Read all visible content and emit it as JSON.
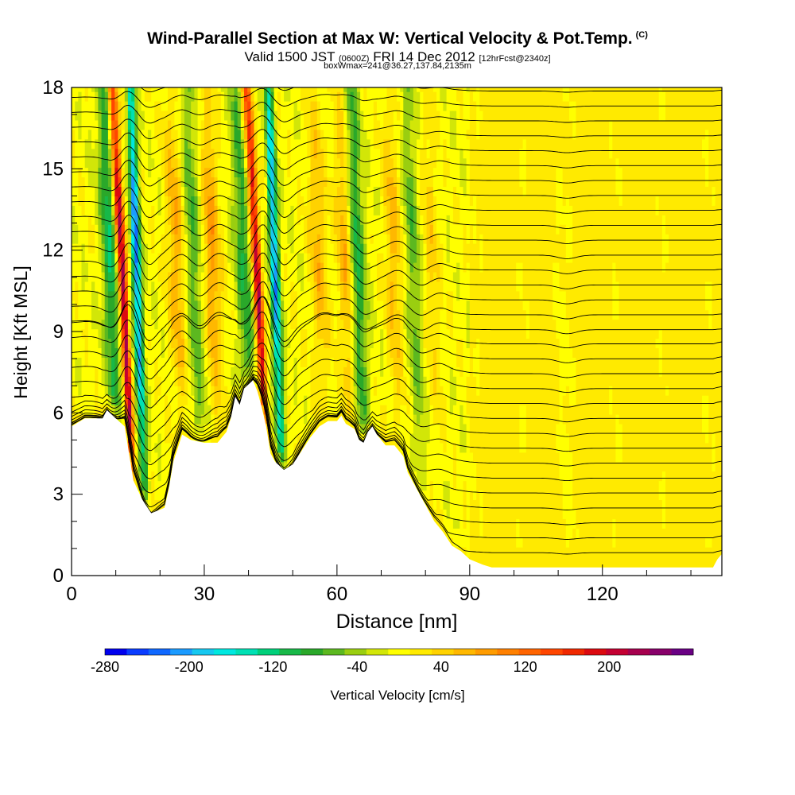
{
  "header": {
    "title": "Wind-Parallel Section at Max W: Vertical Velocity & Pot.Temp.",
    "copyright": "(C)",
    "valid_prefix": "Valid 1500 JST",
    "valid_utc": "(0600Z)",
    "valid_date": "FRI 14 Dec 2012",
    "forecast": "[12hrFcst@2340z]",
    "boxwmax": "boxWmax=241@36.27,137.84,2135m"
  },
  "chart_data": {
    "type": "heatmap",
    "xlabel": "Distance [nm]",
    "ylabel": "Height [Kft MSL]",
    "xlim": [
      0,
      147
    ],
    "ylim": [
      0,
      18
    ],
    "x_ticks": [
      0,
      30,
      60,
      90,
      120
    ],
    "y_ticks": [
      0,
      3,
      6,
      9,
      12,
      15,
      18
    ],
    "terrain": [
      {
        "x": 0,
        "h": 5.5
      },
      {
        "x": 3,
        "h": 5.8
      },
      {
        "x": 7,
        "h": 5.8
      },
      {
        "x": 8,
        "h": 6.1
      },
      {
        "x": 10,
        "h": 5.8
      },
      {
        "x": 12,
        "h": 5.5
      },
      {
        "x": 13,
        "h": 4.5
      },
      {
        "x": 14,
        "h": 3.5
      },
      {
        "x": 16,
        "h": 2.8
      },
      {
        "x": 18,
        "h": 2.3
      },
      {
        "x": 21,
        "h": 2.5
      },
      {
        "x": 22,
        "h": 3.2
      },
      {
        "x": 23,
        "h": 4.2
      },
      {
        "x": 25,
        "h": 5.2
      },
      {
        "x": 27,
        "h": 5.0
      },
      {
        "x": 30,
        "h": 4.9
      },
      {
        "x": 33,
        "h": 4.9
      },
      {
        "x": 35,
        "h": 5.3
      },
      {
        "x": 36,
        "h": 5.8
      },
      {
        "x": 37,
        "h": 6.6
      },
      {
        "x": 38,
        "h": 6.3
      },
      {
        "x": 39,
        "h": 6.9
      },
      {
        "x": 41,
        "h": 7.2
      },
      {
        "x": 42,
        "h": 6.8
      },
      {
        "x": 43,
        "h": 6.2
      },
      {
        "x": 44,
        "h": 5.5
      },
      {
        "x": 45,
        "h": 4.5
      },
      {
        "x": 46,
        "h": 4.2
      },
      {
        "x": 48,
        "h": 3.9
      },
      {
        "x": 50,
        "h": 4.1
      },
      {
        "x": 52,
        "h": 4.6
      },
      {
        "x": 54,
        "h": 5.1
      },
      {
        "x": 56,
        "h": 5.5
      },
      {
        "x": 58,
        "h": 5.7
      },
      {
        "x": 60,
        "h": 5.7
      },
      {
        "x": 61,
        "h": 5.9
      },
      {
        "x": 62,
        "h": 5.6
      },
      {
        "x": 64,
        "h": 5.4
      },
      {
        "x": 65,
        "h": 5.0
      },
      {
        "x": 66,
        "h": 4.9
      },
      {
        "x": 67,
        "h": 5.3
      },
      {
        "x": 68,
        "h": 5.5
      },
      {
        "x": 69,
        "h": 5.2
      },
      {
        "x": 71,
        "h": 4.8
      },
      {
        "x": 73,
        "h": 4.8
      },
      {
        "x": 75,
        "h": 4.4
      },
      {
        "x": 76,
        "h": 3.8
      },
      {
        "x": 78,
        "h": 3.2
      },
      {
        "x": 80,
        "h": 2.6
      },
      {
        "x": 82,
        "h": 2.0
      },
      {
        "x": 84,
        "h": 1.6
      },
      {
        "x": 86,
        "h": 1.1
      },
      {
        "x": 88,
        "h": 0.9
      },
      {
        "x": 90,
        "h": 0.6
      },
      {
        "x": 93,
        "h": 0.4
      },
      {
        "x": 95,
        "h": 0.3
      },
      {
        "x": 110,
        "h": 0.3
      },
      {
        "x": 135,
        "h": 0.3
      },
      {
        "x": 145,
        "h": 0.3
      },
      {
        "x": 146,
        "h": 0.6
      },
      {
        "x": 147,
        "h": 0.8
      }
    ],
    "updrafts": [
      {
        "x": 13.5,
        "peak": 241
      },
      {
        "x": 43.5,
        "peak": 220
      },
      {
        "x": 25,
        "peak": 70
      },
      {
        "x": 33,
        "peak": 80
      },
      {
        "x": 57,
        "peak": 60
      },
      {
        "x": 63,
        "peak": 70
      },
      {
        "x": 74,
        "peak": 60
      },
      {
        "x": 83,
        "peak": 40
      }
    ],
    "downdrafts": [
      {
        "x": 16.5,
        "min": -220
      },
      {
        "x": 47.5,
        "min": -210
      },
      {
        "x": 10,
        "min": -110
      },
      {
        "x": 29,
        "min": -70
      },
      {
        "x": 40,
        "min": -90
      },
      {
        "x": 66,
        "min": -100
      },
      {
        "x": 79,
        "min": -60
      },
      {
        "x": 112,
        "min": -40
      }
    ],
    "isentropes": {
      "base_kft": 0.8,
      "interval_kft": 0.55,
      "count": 34
    }
  },
  "colorbar": {
    "title": "Vertical Velocity [cm/s]",
    "labels": [
      "-280",
      "-200",
      "-120",
      "-40",
      "40",
      "120",
      "200"
    ],
    "colors": [
      "#0000ee",
      "#0a3cff",
      "#0f68ff",
      "#1b9bff",
      "#16c8f0",
      "#00e8e0",
      "#00e0b4",
      "#00d07a",
      "#18b848",
      "#2aa82a",
      "#5cb820",
      "#9ace10",
      "#d2e608",
      "#ffff00",
      "#ffea00",
      "#ffd200",
      "#ffb800",
      "#ff9c00",
      "#ff8000",
      "#ff6400",
      "#ff4600",
      "#f02800",
      "#dc0a10",
      "#c40032",
      "#a6004e",
      "#88006a",
      "#6a0084"
    ],
    "range": [
      -280,
      280
    ]
  }
}
